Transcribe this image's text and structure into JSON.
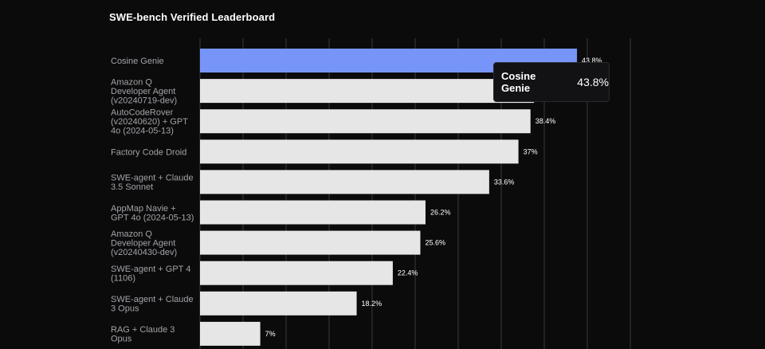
{
  "title": "SWE-bench Verified Leaderboard",
  "chart_data": {
    "type": "bar",
    "orientation": "horizontal",
    "title": "SWE-bench Verified Leaderboard",
    "categories": [
      [
        "Cosine Genie"
      ],
      [
        "Amazon Q",
        "Developer Agent",
        "(v20240719-dev)"
      ],
      [
        "AutoCodeRover",
        "(v20240620) + GPT",
        "4o (2024-05-13)"
      ],
      [
        "Factory Code Droid"
      ],
      [
        "SWE-agent + Claude",
        "3.5 Sonnet"
      ],
      [
        "AppMap Navie +",
        "GPT 4o (2024-05-13)"
      ],
      [
        "Amazon Q",
        "Developer Agent",
        "(v20240430-dev)"
      ],
      [
        "SWE-agent + GPT 4",
        "(1106)"
      ],
      [
        "SWE-agent + Claude",
        "3 Opus"
      ],
      [
        "RAG + Claude 3",
        "Opus"
      ]
    ],
    "values": [
      43.8,
      38.8,
      38.4,
      37,
      33.6,
      26.2,
      25.6,
      22.4,
      18.2,
      7
    ],
    "value_labels": [
      "43.8%",
      "38.8%",
      "38.4%",
      "37%",
      "33.6%",
      "26.2%",
      "25.6%",
      "22.4%",
      "18.2%",
      "7%"
    ],
    "xlim": [
      0,
      50
    ],
    "grid": "vertical",
    "highlight_index": 0,
    "colors": {
      "highlight": "#7795f8",
      "bar": "#e6e6e6",
      "grid": "#3a3a3e",
      "background": "#0b0b0c",
      "label": "#a3a3a8"
    }
  },
  "tooltip": {
    "name": "Cosine Genie",
    "value": "43.8%"
  }
}
